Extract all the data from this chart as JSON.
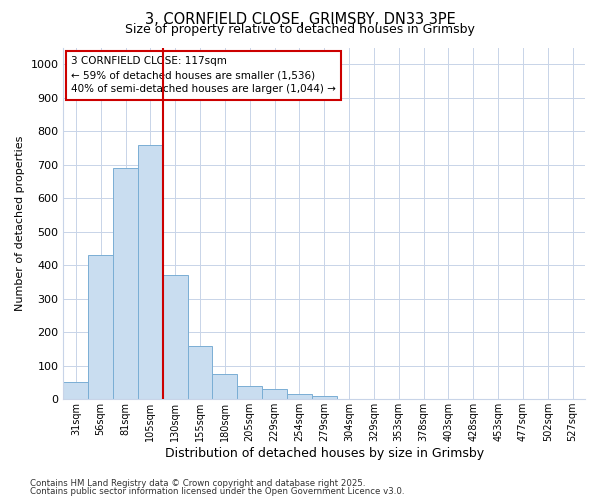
{
  "title1": "3, CORNFIELD CLOSE, GRIMSBY, DN33 3PE",
  "title2": "Size of property relative to detached houses in Grimsby",
  "xlabel": "Distribution of detached houses by size in Grimsby",
  "ylabel": "Number of detached properties",
  "categories": [
    "31sqm",
    "56sqm",
    "81sqm",
    "105sqm",
    "130sqm",
    "155sqm",
    "180sqm",
    "205sqm",
    "229sqm",
    "254sqm",
    "279sqm",
    "304sqm",
    "329sqm",
    "353sqm",
    "378sqm",
    "403sqm",
    "428sqm",
    "453sqm",
    "477sqm",
    "502sqm",
    "527sqm"
  ],
  "values": [
    50,
    430,
    690,
    760,
    370,
    160,
    75,
    40,
    30,
    15,
    10,
    0,
    0,
    0,
    0,
    0,
    0,
    0,
    0,
    0,
    0
  ],
  "bar_color": "#c9ddf0",
  "bar_edge_color": "#7aaed4",
  "bar_linewidth": 0.7,
  "red_line_color": "#cc0000",
  "annotation_text_line1": "3 CORNFIELD CLOSE: 117sqm",
  "annotation_text_line2": "← 59% of detached houses are smaller (1,536)",
  "annotation_text_line3": "40% of semi-detached houses are larger (1,044) →",
  "grid_color": "#c8d4e8",
  "background_color": "#ffffff",
  "axes_background": "#ffffff",
  "ylim": [
    0,
    1050
  ],
  "yticks": [
    0,
    100,
    200,
    300,
    400,
    500,
    600,
    700,
    800,
    900,
    1000
  ],
  "footnote1": "Contains HM Land Registry data © Crown copyright and database right 2025.",
  "footnote2": "Contains public sector information licensed under the Open Government Licence v3.0."
}
